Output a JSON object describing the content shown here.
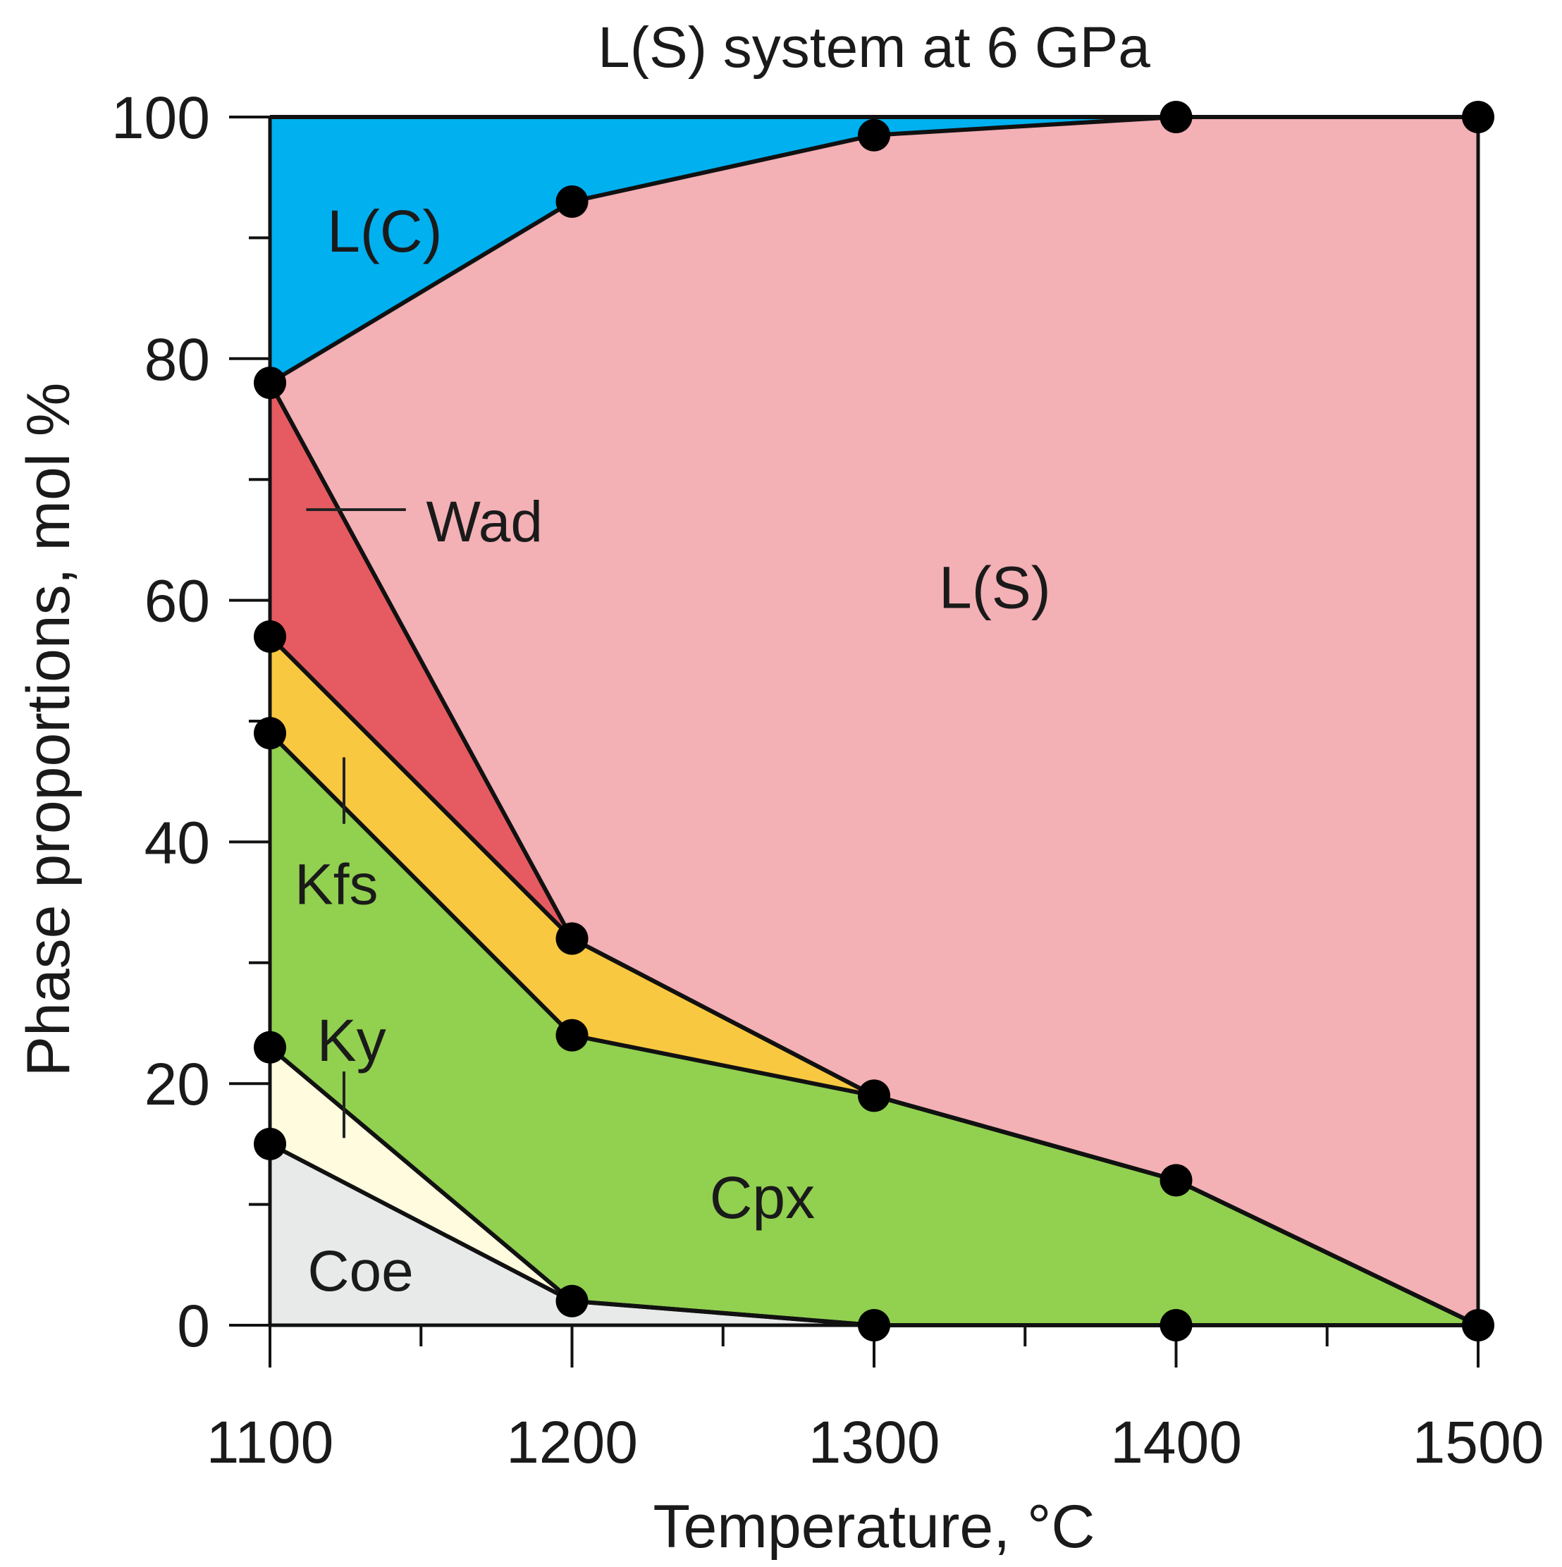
{
  "chart_data": {
    "type": "area",
    "title": "L(S) system at 6 GPa",
    "xlabel": "Temperature, °C",
    "ylabel": "Phase proportions, mol %",
    "x": [
      1100,
      1200,
      1300,
      1400,
      1500
    ],
    "xlim": [
      1100,
      1500
    ],
    "ylim": [
      0,
      100
    ],
    "x_ticks": [
      1100,
      1200,
      1300,
      1400,
      1500
    ],
    "y_ticks": [
      0,
      20,
      40,
      60,
      80,
      100
    ],
    "grid": false,
    "boundaries": [
      {
        "name": "Coe",
        "values": [
          15,
          2,
          0,
          0,
          0
        ]
      },
      {
        "name": "Ky",
        "values": [
          23,
          2,
          0,
          0,
          0
        ]
      },
      {
        "name": "Cpx",
        "values": [
          49,
          24,
          19,
          12,
          0
        ]
      },
      {
        "name": "Kfs",
        "values": [
          57,
          32,
          19,
          12,
          0
        ]
      },
      {
        "name": "Wad",
        "values": [
          78,
          32,
          19,
          12,
          0
        ]
      },
      {
        "name": "L(S)",
        "values": [
          78,
          93,
          98.5,
          100,
          100
        ]
      },
      {
        "name": "L(C)",
        "values": [
          100,
          100,
          100,
          100,
          100
        ]
      }
    ],
    "series": [
      {
        "name": "Coe",
        "color": "#e8eae9",
        "lower": [
          0,
          0,
          0,
          0,
          0
        ],
        "upper": [
          15,
          2,
          0,
          0,
          0
        ]
      },
      {
        "name": "Ky",
        "color": "#fefbdf",
        "lower": [
          15,
          2,
          0,
          0,
          0
        ],
        "upper": [
          23,
          2,
          0,
          0,
          0
        ]
      },
      {
        "name": "Cpx",
        "color": "#92d050",
        "lower": [
          23,
          2,
          0,
          0,
          0
        ],
        "upper": [
          49,
          24,
          19,
          12,
          0
        ]
      },
      {
        "name": "Kfs",
        "color": "#f8c840",
        "lower": [
          49,
          24,
          19,
          12,
          0
        ],
        "upper": [
          57,
          32,
          19,
          12,
          0
        ]
      },
      {
        "name": "Wad",
        "color": "#e55b61",
        "lower": [
          57,
          32,
          19,
          12,
          0
        ],
        "upper": [
          78,
          32,
          19,
          12,
          0
        ]
      },
      {
        "name": "L(S)",
        "color": "#f3b0b5",
        "lower": [
          78,
          32,
          19,
          12,
          0
        ],
        "upper": [
          78,
          93,
          98.5,
          100,
          100
        ]
      },
      {
        "name": "L(C)",
        "color": "#00b0ef",
        "lower": [
          78,
          93,
          98.5,
          100,
          100
        ],
        "upper": [
          100,
          100,
          100,
          100,
          100
        ]
      }
    ],
    "points": [
      {
        "x": 1100,
        "y": 15
      },
      {
        "x": 1100,
        "y": 23
      },
      {
        "x": 1100,
        "y": 49
      },
      {
        "x": 1100,
        "y": 57
      },
      {
        "x": 1100,
        "y": 78
      },
      {
        "x": 1200,
        "y": 2
      },
      {
        "x": 1200,
        "y": 24
      },
      {
        "x": 1200,
        "y": 32
      },
      {
        "x": 1200,
        "y": 93
      },
      {
        "x": 1300,
        "y": 0
      },
      {
        "x": 1300,
        "y": 19
      },
      {
        "x": 1300,
        "y": 98.5
      },
      {
        "x": 1400,
        "y": 0
      },
      {
        "x": 1400,
        "y": 12
      },
      {
        "x": 1400,
        "y": 100
      },
      {
        "x": 1500,
        "y": 0
      },
      {
        "x": 1500,
        "y": 100
      }
    ],
    "annotations": [
      {
        "text": "L(C)",
        "x": 1138,
        "y": 90.5
      },
      {
        "text": "Wad",
        "x": 1171,
        "y": 66.5
      },
      {
        "text": "L(S)",
        "x": 1340,
        "y": 61
      },
      {
        "text": "Kfs",
        "x": 1122,
        "y": 36.5
      },
      {
        "text": "Ky",
        "x": 1127,
        "y": 23.5
      },
      {
        "text": "Cpx",
        "x": 1263,
        "y": 10.5
      },
      {
        "text": "Coe",
        "x": 1130,
        "y": 4.5
      }
    ],
    "leader_lines": [
      {
        "label": "Wad",
        "x1": 1112,
        "y1": 67.5,
        "x2": 1145,
        "y2": 67.5
      },
      {
        "label": "Kfs",
        "x1": 1124.5,
        "y1": 47,
        "x2": 1124.5,
        "y2": 41.5
      },
      {
        "label": "Ky",
        "x1": 1124.5,
        "y1": 21,
        "x2": 1124.5,
        "y2": 15.5
      }
    ]
  }
}
